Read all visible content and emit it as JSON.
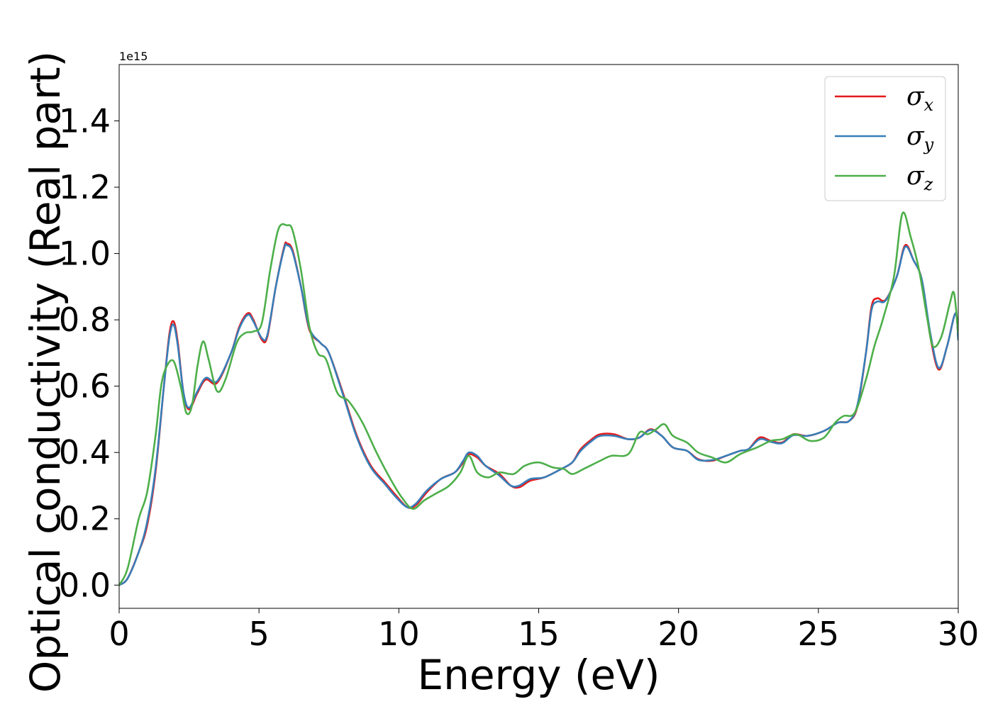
{
  "chart_data": {
    "type": "line",
    "xlabel": "Energy (eV)",
    "ylabel": "Optical conductivity (Real part)",
    "y_offset_label": "1e15",
    "xlim": [
      0,
      30
    ],
    "ylim": [
      -0.07,
      1.57
    ],
    "xticks": [
      0,
      5,
      10,
      15,
      20,
      25,
      30
    ],
    "xtick_labels": [
      "0",
      "5",
      "10",
      "15",
      "20",
      "25",
      "30"
    ],
    "yticks": [
      0.0,
      0.2,
      0.4,
      0.6,
      0.8,
      1.0,
      1.2,
      1.4
    ],
    "ytick_labels": [
      "0.0",
      "0.2",
      "0.4",
      "0.6",
      "0.8",
      "1.0",
      "1.2",
      "1.4"
    ],
    "grid": false,
    "legend_position": "top-right",
    "series": [
      {
        "name": "σx",
        "symbol": "σ",
        "subscript": "x",
        "color": "#e41a1c",
        "points": [
          [
            0,
            0.0
          ],
          [
            0.3,
            0.02
          ],
          [
            0.7,
            0.1
          ],
          [
            1.0,
            0.18
          ],
          [
            1.3,
            0.34
          ],
          [
            1.6,
            0.6
          ],
          [
            1.8,
            0.76
          ],
          [
            1.95,
            0.795
          ],
          [
            2.1,
            0.73
          ],
          [
            2.3,
            0.58
          ],
          [
            2.5,
            0.53
          ],
          [
            2.8,
            0.58
          ],
          [
            3.1,
            0.62
          ],
          [
            3.5,
            0.61
          ],
          [
            4.0,
            0.7
          ],
          [
            4.3,
            0.78
          ],
          [
            4.6,
            0.82
          ],
          [
            4.8,
            0.8
          ],
          [
            5.1,
            0.74
          ],
          [
            5.3,
            0.75
          ],
          [
            5.6,
            0.9
          ],
          [
            5.9,
            1.02
          ],
          [
            6.0,
            1.03
          ],
          [
            6.2,
            1.01
          ],
          [
            6.5,
            0.9
          ],
          [
            6.8,
            0.77
          ],
          [
            7.2,
            0.73
          ],
          [
            7.5,
            0.7
          ],
          [
            8.0,
            0.58
          ],
          [
            8.5,
            0.45
          ],
          [
            9.0,
            0.36
          ],
          [
            9.5,
            0.31
          ],
          [
            9.9,
            0.27
          ],
          [
            10.3,
            0.235
          ],
          [
            10.6,
            0.24
          ],
          [
            11.0,
            0.28
          ],
          [
            11.5,
            0.32
          ],
          [
            12.0,
            0.34
          ],
          [
            12.3,
            0.37
          ],
          [
            12.5,
            0.395
          ],
          [
            12.8,
            0.385
          ],
          [
            13.1,
            0.36
          ],
          [
            13.6,
            0.335
          ],
          [
            14.0,
            0.3
          ],
          [
            14.3,
            0.295
          ],
          [
            14.7,
            0.315
          ],
          [
            15.2,
            0.325
          ],
          [
            15.8,
            0.35
          ],
          [
            16.2,
            0.37
          ],
          [
            16.5,
            0.41
          ],
          [
            16.9,
            0.44
          ],
          [
            17.2,
            0.455
          ],
          [
            17.7,
            0.455
          ],
          [
            18.2,
            0.44
          ],
          [
            18.6,
            0.445
          ],
          [
            19.0,
            0.47
          ],
          [
            19.4,
            0.45
          ],
          [
            19.8,
            0.415
          ],
          [
            20.3,
            0.405
          ],
          [
            20.7,
            0.38
          ],
          [
            21.2,
            0.375
          ],
          [
            21.7,
            0.39
          ],
          [
            22.2,
            0.405
          ],
          [
            22.5,
            0.41
          ],
          [
            22.9,
            0.445
          ],
          [
            23.3,
            0.435
          ],
          [
            23.7,
            0.43
          ],
          [
            24.1,
            0.455
          ],
          [
            24.6,
            0.45
          ],
          [
            25.2,
            0.465
          ],
          [
            25.7,
            0.49
          ],
          [
            26.1,
            0.495
          ],
          [
            26.4,
            0.54
          ],
          [
            26.7,
            0.7
          ],
          [
            26.9,
            0.84
          ],
          [
            27.1,
            0.865
          ],
          [
            27.4,
            0.86
          ],
          [
            27.8,
            0.93
          ],
          [
            28.1,
            1.025
          ],
          [
            28.4,
            0.98
          ],
          [
            28.7,
            0.92
          ],
          [
            29.0,
            0.75
          ],
          [
            29.3,
            0.65
          ],
          [
            29.6,
            0.72
          ],
          [
            29.9,
            0.82
          ],
          [
            30.0,
            0.74
          ]
        ]
      },
      {
        "name": "σy",
        "symbol": "σ",
        "subscript": "y",
        "color": "#377eb8",
        "points": [
          [
            0,
            0.0
          ],
          [
            0.3,
            0.02
          ],
          [
            0.7,
            0.1
          ],
          [
            1.0,
            0.19
          ],
          [
            1.3,
            0.35
          ],
          [
            1.6,
            0.6
          ],
          [
            1.8,
            0.75
          ],
          [
            1.95,
            0.785
          ],
          [
            2.1,
            0.72
          ],
          [
            2.3,
            0.58
          ],
          [
            2.5,
            0.535
          ],
          [
            2.8,
            0.585
          ],
          [
            3.1,
            0.625
          ],
          [
            3.5,
            0.615
          ],
          [
            4.0,
            0.7
          ],
          [
            4.3,
            0.775
          ],
          [
            4.6,
            0.815
          ],
          [
            4.8,
            0.795
          ],
          [
            5.1,
            0.745
          ],
          [
            5.3,
            0.755
          ],
          [
            5.6,
            0.9
          ],
          [
            5.9,
            1.015
          ],
          [
            6.0,
            1.025
          ],
          [
            6.2,
            1.005
          ],
          [
            6.5,
            0.9
          ],
          [
            6.8,
            0.775
          ],
          [
            7.2,
            0.73
          ],
          [
            7.5,
            0.7
          ],
          [
            8.0,
            0.575
          ],
          [
            8.5,
            0.445
          ],
          [
            9.0,
            0.355
          ],
          [
            9.5,
            0.305
          ],
          [
            9.9,
            0.265
          ],
          [
            10.3,
            0.235
          ],
          [
            10.6,
            0.245
          ],
          [
            11.0,
            0.285
          ],
          [
            11.5,
            0.32
          ],
          [
            12.0,
            0.34
          ],
          [
            12.3,
            0.375
          ],
          [
            12.5,
            0.4
          ],
          [
            12.8,
            0.39
          ],
          [
            13.1,
            0.36
          ],
          [
            13.6,
            0.33
          ],
          [
            14.0,
            0.3
          ],
          [
            14.3,
            0.3
          ],
          [
            14.7,
            0.32
          ],
          [
            15.2,
            0.325
          ],
          [
            15.8,
            0.35
          ],
          [
            16.2,
            0.37
          ],
          [
            16.5,
            0.405
          ],
          [
            16.9,
            0.435
          ],
          [
            17.2,
            0.45
          ],
          [
            17.7,
            0.45
          ],
          [
            18.2,
            0.44
          ],
          [
            18.6,
            0.445
          ],
          [
            19.0,
            0.468
          ],
          [
            19.4,
            0.45
          ],
          [
            19.8,
            0.415
          ],
          [
            20.3,
            0.405
          ],
          [
            20.7,
            0.378
          ],
          [
            21.2,
            0.377
          ],
          [
            21.7,
            0.39
          ],
          [
            22.2,
            0.405
          ],
          [
            22.5,
            0.41
          ],
          [
            22.9,
            0.44
          ],
          [
            23.3,
            0.432
          ],
          [
            23.7,
            0.428
          ],
          [
            24.1,
            0.452
          ],
          [
            24.6,
            0.45
          ],
          [
            25.2,
            0.465
          ],
          [
            25.7,
            0.49
          ],
          [
            26.1,
            0.495
          ],
          [
            26.4,
            0.545
          ],
          [
            26.7,
            0.7
          ],
          [
            26.9,
            0.83
          ],
          [
            27.1,
            0.855
          ],
          [
            27.4,
            0.858
          ],
          [
            27.8,
            0.93
          ],
          [
            28.1,
            1.02
          ],
          [
            28.4,
            0.98
          ],
          [
            28.7,
            0.92
          ],
          [
            29.0,
            0.76
          ],
          [
            29.3,
            0.655
          ],
          [
            29.6,
            0.72
          ],
          [
            29.9,
            0.82
          ],
          [
            30.0,
            0.74
          ]
        ]
      },
      {
        "name": "σz",
        "symbol": "σ",
        "subscript": "z",
        "color": "#4daf4a",
        "points": [
          [
            0,
            0.0
          ],
          [
            0.3,
            0.05
          ],
          [
            0.7,
            0.2
          ],
          [
            1.0,
            0.28
          ],
          [
            1.3,
            0.45
          ],
          [
            1.5,
            0.6
          ],
          [
            1.7,
            0.66
          ],
          [
            1.95,
            0.675
          ],
          [
            2.2,
            0.6
          ],
          [
            2.4,
            0.52
          ],
          [
            2.6,
            0.54
          ],
          [
            2.8,
            0.66
          ],
          [
            3.0,
            0.735
          ],
          [
            3.2,
            0.68
          ],
          [
            3.5,
            0.585
          ],
          [
            3.8,
            0.62
          ],
          [
            4.2,
            0.73
          ],
          [
            4.5,
            0.76
          ],
          [
            4.8,
            0.765
          ],
          [
            5.1,
            0.79
          ],
          [
            5.4,
            0.95
          ],
          [
            5.7,
            1.075
          ],
          [
            6.0,
            1.085
          ],
          [
            6.2,
            1.07
          ],
          [
            6.5,
            0.95
          ],
          [
            6.8,
            0.78
          ],
          [
            7.1,
            0.7
          ],
          [
            7.4,
            0.68
          ],
          [
            7.8,
            0.58
          ],
          [
            8.2,
            0.555
          ],
          [
            8.7,
            0.49
          ],
          [
            9.2,
            0.4
          ],
          [
            9.7,
            0.32
          ],
          [
            10.1,
            0.265
          ],
          [
            10.5,
            0.23
          ],
          [
            10.9,
            0.255
          ],
          [
            11.3,
            0.275
          ],
          [
            11.8,
            0.3
          ],
          [
            12.2,
            0.34
          ],
          [
            12.5,
            0.39
          ],
          [
            12.8,
            0.34
          ],
          [
            13.2,
            0.325
          ],
          [
            13.6,
            0.34
          ],
          [
            14.1,
            0.335
          ],
          [
            14.5,
            0.36
          ],
          [
            15.0,
            0.37
          ],
          [
            15.5,
            0.355
          ],
          [
            15.9,
            0.35
          ],
          [
            16.2,
            0.335
          ],
          [
            16.6,
            0.35
          ],
          [
            17.2,
            0.375
          ],
          [
            17.6,
            0.39
          ],
          [
            18.2,
            0.395
          ],
          [
            18.6,
            0.46
          ],
          [
            18.9,
            0.455
          ],
          [
            19.2,
            0.47
          ],
          [
            19.5,
            0.485
          ],
          [
            19.8,
            0.45
          ],
          [
            20.3,
            0.43
          ],
          [
            20.7,
            0.4
          ],
          [
            21.2,
            0.385
          ],
          [
            21.7,
            0.37
          ],
          [
            22.2,
            0.395
          ],
          [
            22.8,
            0.415
          ],
          [
            23.3,
            0.435
          ],
          [
            23.7,
            0.44
          ],
          [
            24.2,
            0.455
          ],
          [
            24.7,
            0.435
          ],
          [
            25.2,
            0.445
          ],
          [
            25.6,
            0.49
          ],
          [
            25.9,
            0.51
          ],
          [
            26.3,
            0.52
          ],
          [
            26.7,
            0.62
          ],
          [
            27.0,
            0.72
          ],
          [
            27.3,
            0.8
          ],
          [
            27.7,
            0.93
          ],
          [
            28.0,
            1.12
          ],
          [
            28.3,
            1.05
          ],
          [
            28.6,
            0.95
          ],
          [
            28.9,
            0.8
          ],
          [
            29.1,
            0.72
          ],
          [
            29.4,
            0.75
          ],
          [
            29.7,
            0.85
          ],
          [
            29.85,
            0.88
          ],
          [
            30.0,
            0.76
          ]
        ]
      }
    ]
  }
}
